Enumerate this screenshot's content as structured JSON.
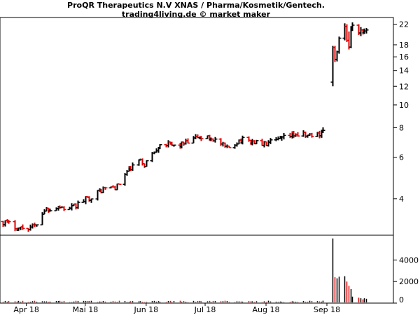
{
  "chart_data": {
    "type": "ohlc",
    "title": "ProQR Therapeutics N.V XNAS / Pharma/Kosmetik/Gentech.",
    "subtitle": "trading4living.de © market maker",
    "price_scale": "log",
    "price_range": [
      2.8,
      23.5
    ],
    "price_ticks": [
      22,
      18,
      16,
      14,
      12,
      10,
      8,
      6,
      4
    ],
    "volume_range": [
      0,
      6300
    ],
    "volume_ticks": [
      4000,
      2000,
      0
    ],
    "time_range": [
      "2018-03-20",
      "2018-10-02"
    ],
    "x_labels": [
      {
        "date": "2018-04-01",
        "label": "Apr 18"
      },
      {
        "date": "2018-05-01",
        "label": "Mai 18"
      },
      {
        "date": "2018-06-01",
        "label": "Jun 18"
      },
      {
        "date": "2018-07-01",
        "label": "Jul 18"
      },
      {
        "date": "2018-08-01",
        "label": "Aug 18"
      },
      {
        "date": "2018-09-01",
        "label": "Sep 18"
      }
    ],
    "up_color": "#000000",
    "down_color": "#e00000",
    "anchors": [
      [
        "2018-03-20",
        3.2
      ],
      [
        "2018-03-28",
        3.0
      ],
      [
        "2018-04-05",
        3.05
      ],
      [
        "2018-04-10",
        3.6
      ],
      [
        "2018-04-17",
        3.7
      ],
      [
        "2018-04-23",
        3.6
      ],
      [
        "2018-04-27",
        3.8
      ],
      [
        "2018-05-04",
        4.1
      ],
      [
        "2018-05-10",
        4.4
      ],
      [
        "2018-05-17",
        4.5
      ],
      [
        "2018-05-22",
        5.2
      ],
      [
        "2018-05-28",
        5.8
      ],
      [
        "2018-05-31",
        5.6
      ],
      [
        "2018-06-04",
        6.2
      ],
      [
        "2018-06-08",
        6.9
      ],
      [
        "2018-06-15",
        6.7
      ],
      [
        "2018-06-22",
        6.9
      ],
      [
        "2018-06-27",
        7.3
      ],
      [
        "2018-07-05",
        7.2
      ],
      [
        "2018-07-12",
        6.5
      ],
      [
        "2018-07-18",
        7.1
      ],
      [
        "2018-07-25",
        7.0
      ],
      [
        "2018-07-31",
        6.8
      ],
      [
        "2018-08-08",
        7.1
      ],
      [
        "2018-08-15",
        7.5
      ],
      [
        "2018-08-22",
        7.4
      ],
      [
        "2018-08-27",
        7.5
      ],
      [
        "2018-08-30",
        7.8
      ]
    ],
    "september_bars": [
      {
        "date": "2018-09-04",
        "open": 12.5,
        "high": 17.8,
        "low": 12.0,
        "close": 17.5
      },
      {
        "date": "2018-09-05",
        "open": 17.5,
        "high": 17.8,
        "low": 15.2,
        "close": 15.6
      },
      {
        "date": "2018-09-06",
        "open": 15.6,
        "high": 17.0,
        "low": 15.3,
        "close": 16.8
      },
      {
        "date": "2018-09-07",
        "open": 16.8,
        "high": 19.5,
        "low": 16.5,
        "close": 19.2
      },
      {
        "date": "2018-09-10",
        "open": 19.2,
        "high": 22.2,
        "low": 18.8,
        "close": 21.5
      },
      {
        "date": "2018-09-11",
        "open": 21.5,
        "high": 22.0,
        "low": 18.5,
        "close": 18.8
      },
      {
        "date": "2018-09-12",
        "open": 18.8,
        "high": 20.5,
        "low": 17.2,
        "close": 17.6
      },
      {
        "date": "2018-09-13",
        "open": 17.6,
        "high": 21.6,
        "low": 17.4,
        "close": 21.2
      },
      {
        "date": "2018-09-14",
        "open": 21.2,
        "high": 22.4,
        "low": 20.6,
        "close": 21.8
      },
      {
        "date": "2018-09-17",
        "open": 21.8,
        "high": 22.0,
        "low": 19.8,
        "close": 20.2
      },
      {
        "date": "2018-09-18",
        "open": 20.2,
        "high": 21.4,
        "low": 19.6,
        "close": 20.8
      },
      {
        "date": "2018-09-19",
        "open": 20.8,
        "high": 21.0,
        "low": 19.9,
        "close": 20.3
      },
      {
        "date": "2018-09-20",
        "open": 20.3,
        "high": 21.1,
        "low": 20.0,
        "close": 20.6
      },
      {
        "date": "2018-09-21",
        "open": 20.6,
        "high": 21.2,
        "low": 20.1,
        "close": 20.8
      }
    ],
    "normal_volume": 150,
    "september_volumes": [
      6000,
      2400,
      2300,
      2450,
      2500,
      2000,
      1600,
      1300,
      600,
      500,
      450,
      350,
      450,
      400
    ]
  }
}
